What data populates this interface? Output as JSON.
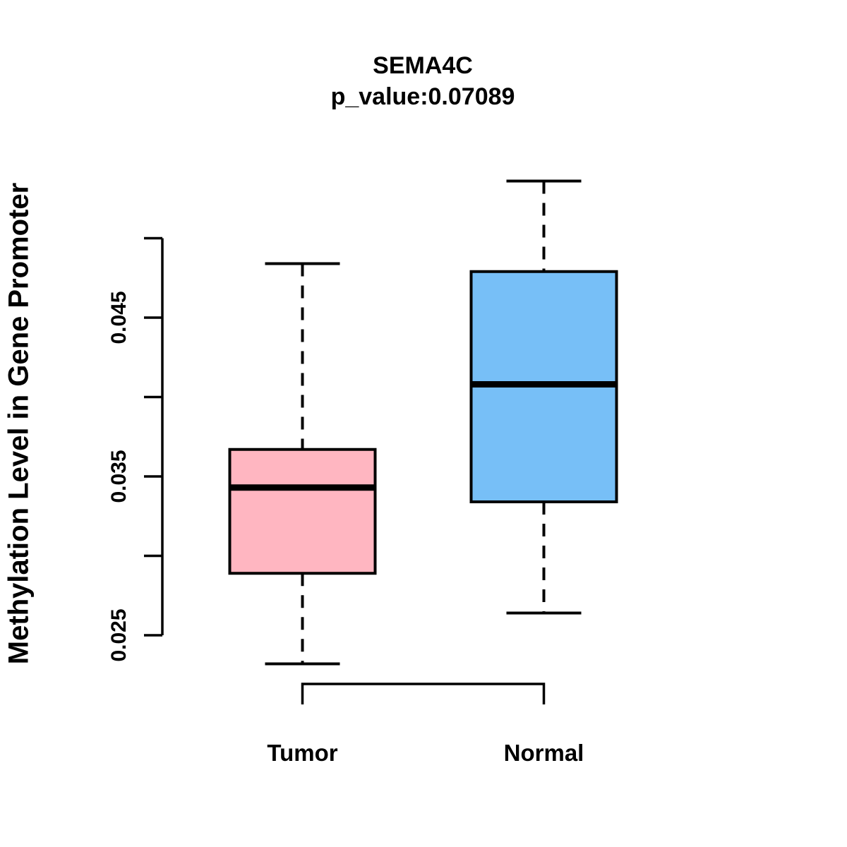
{
  "title": "SEMA4C",
  "subtitle": "p_value:0.07089",
  "y_axis_label": "Methylation Level in Gene Promoter",
  "colors": {
    "background": "#FFFFFF",
    "stroke": "#000000",
    "tumor_fill": "#FFB6C1",
    "normal_fill": "#77BFF7"
  },
  "chart_data": {
    "type": "boxplot",
    "title": "SEMA4C",
    "subtitle": "p_value:0.07089",
    "ylabel": "Methylation Level in Gene Promoter",
    "xlabel": "",
    "categories": [
      "Tumor",
      "Normal"
    ],
    "ylim": [
      0.025,
      0.05
    ],
    "y_ticks": [
      0.025,
      0.03,
      0.035,
      0.04,
      0.045,
      0.05
    ],
    "y_ticks_labeled": [
      0.025,
      0.035,
      0.045
    ],
    "y_tick_labels": [
      "0.025",
      "0.035",
      "0.045"
    ],
    "grid": false,
    "legend": "none",
    "whisker_style": "dashed",
    "series": [
      {
        "name": "Tumor",
        "fill": "#FFB6C1",
        "whisker_low": 0.0232,
        "q1": 0.0289,
        "median": 0.0343,
        "q3": 0.0367,
        "whisker_high": 0.0484
      },
      {
        "name": "Normal",
        "fill": "#77BFF7",
        "whisker_low": 0.0264,
        "q1": 0.0334,
        "median": 0.0408,
        "q3": 0.0479,
        "whisker_high": 0.0536
      }
    ]
  }
}
